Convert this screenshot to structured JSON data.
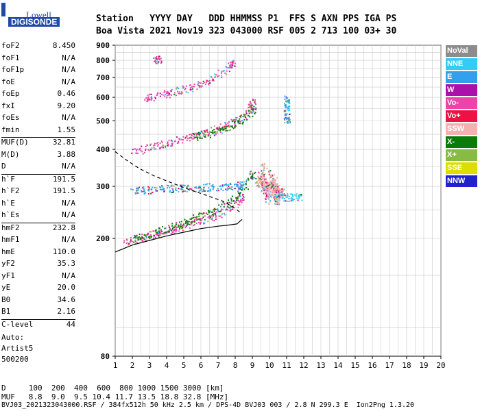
{
  "logo": {
    "line1": "Lowell",
    "line2": "DIGISONDE"
  },
  "header": {
    "line1": "Station   YYYY DAY   DDD HHMMSS P1  FFS S AXN PPS IGA PS",
    "line2": "Boa Vista 2021 Nov19 323 043000 RSF 005 2 713 100 03+ 30"
  },
  "params": {
    "group1": [
      {
        "n": "foF2",
        "v": "8.450"
      },
      {
        "n": "foF1",
        "v": "N/A"
      },
      {
        "n": "foF1p",
        "v": "N/A"
      },
      {
        "n": "foE",
        "v": "N/A"
      },
      {
        "n": "foEp",
        "v": "0.46"
      },
      {
        "n": "fxI",
        "v": "9.20"
      },
      {
        "n": "foEs",
        "v": "N/A"
      },
      {
        "n": "fmin",
        "v": "1.55"
      }
    ],
    "group2": [
      {
        "n": "MUF(D)",
        "v": "32.81"
      },
      {
        "n": "M(D)",
        "v": "3.88"
      },
      {
        "n": "D",
        "v": "N/A"
      }
    ],
    "group3": [
      {
        "n": "h`F",
        "v": "191.5"
      },
      {
        "n": "h`F2",
        "v": "191.5"
      },
      {
        "n": "h`E",
        "v": "N/A"
      },
      {
        "n": "h`Es",
        "v": "N/A"
      }
    ],
    "group4": [
      {
        "n": "hmF2",
        "v": "232.8"
      },
      {
        "n": "hmF1",
        "v": "N/A"
      },
      {
        "n": "hmE",
        "v": "110.0"
      },
      {
        "n": "yF2",
        "v": "35.3"
      },
      {
        "n": "yF1",
        "v": "N/A"
      },
      {
        "n": "yE",
        "v": "20.0"
      },
      {
        "n": "B0",
        "v": "34.6"
      },
      {
        "n": "B1",
        "v": "2.16"
      }
    ],
    "group5": [
      {
        "n": "C-level",
        "v": "44"
      }
    ]
  },
  "auto": {
    "l1": "Auto:",
    "l2": "Artist5",
    "l3": "500200"
  },
  "legend": [
    {
      "label": "NoVal",
      "color": "#8c8c8c"
    },
    {
      "label": "NNE",
      "color": "#33ccf5"
    },
    {
      "label": "E",
      "color": "#33a0ee"
    },
    {
      "label": "W",
      "color": "#aa11aa"
    },
    {
      "label": "Vo-",
      "color": "#ee44aa"
    },
    {
      "label": "Vo+",
      "color": "#ee1144"
    },
    {
      "label": "SSW",
      "color": "#f5b0b0"
    },
    {
      "label": "X-",
      "color": "#0a7a0a"
    },
    {
      "label": "X+",
      "color": "#88bb44"
    },
    {
      "label": "SSE",
      "color": "#dddd00"
    },
    {
      "label": "NNW",
      "color": "#2222cc"
    }
  ],
  "footer": {
    "l1": "D     100  200  400  600  800 1000 1500 3000 [km]",
    "l2": "MUF   8.8  9.0  9.5 10.4 11.7 13.5 18.8 32.8 [MHz]",
    "l3": "BVJ03_2021323043000.RSF / 384fx512h 50 kHz 2.5 km / DPS-4D BVJ03 003 / 2.8 N 299.3 E  Ion2Png 1.3.20"
  },
  "chart_data": {
    "type": "scatter",
    "xlim": [
      1,
      20
    ],
    "ylim": [
      80,
      900
    ],
    "xticks": [
      1,
      2,
      3,
      4,
      5,
      6,
      7,
      8,
      9,
      10,
      11,
      12,
      13,
      14,
      15,
      16,
      17,
      18,
      19,
      20
    ],
    "yticks": [
      80,
      200,
      300,
      400,
      500,
      600,
      700,
      800,
      900
    ],
    "grid": true,
    "legend_position": "right",
    "profile_solid": [
      [
        1.0,
        180
      ],
      [
        2.0,
        190
      ],
      [
        3.0,
        197
      ],
      [
        4.0,
        204
      ],
      [
        5.0,
        210
      ],
      [
        6.0,
        216
      ],
      [
        7.0,
        220
      ],
      [
        7.6,
        222
      ],
      [
        8.1,
        224
      ],
      [
        8.4,
        232
      ]
    ],
    "profile_dashed": [
      [
        1.0,
        393
      ],
      [
        1.6,
        370
      ],
      [
        2.4,
        345
      ],
      [
        3.3,
        325
      ],
      [
        4.3,
        308
      ],
      [
        5.3,
        293
      ],
      [
        6.3,
        280
      ],
      [
        7.3,
        267
      ],
      [
        7.9,
        255
      ],
      [
        8.3,
        245
      ]
    ],
    "traces": [
      {
        "name": "F2 O-trace 1st",
        "color": "#ee44aa",
        "points": [
          [
            1.5,
            195
          ],
          [
            2.0,
            198
          ],
          [
            2.5,
            202
          ],
          [
            3.0,
            205
          ],
          [
            3.5,
            209
          ],
          [
            4.0,
            213
          ],
          [
            4.5,
            217
          ],
          [
            5.0,
            222
          ],
          [
            5.5,
            226
          ],
          [
            6.0,
            230
          ],
          [
            6.5,
            236
          ],
          [
            7.0,
            242
          ],
          [
            7.5,
            250
          ],
          [
            8.0,
            262
          ],
          [
            8.3,
            278
          ]
        ]
      },
      {
        "name": "F2 X-trace 1st",
        "color": "#0a7a0a",
        "points": [
          [
            2.0,
            200
          ],
          [
            2.5,
            204
          ],
          [
            3.0,
            208
          ],
          [
            3.5,
            212
          ],
          [
            4.0,
            217
          ],
          [
            4.5,
            221
          ],
          [
            5.0,
            226
          ],
          [
            5.5,
            232
          ],
          [
            6.0,
            238
          ],
          [
            6.5,
            244
          ],
          [
            7.0,
            252
          ],
          [
            7.5,
            262
          ],
          [
            8.0,
            276
          ],
          [
            8.5,
            298
          ],
          [
            9.0,
            330
          ]
        ]
      },
      {
        "name": "NNE/E echoes",
        "color": "#33a0ee",
        "points": [
          [
            2.0,
            290
          ],
          [
            2.5,
            292
          ],
          [
            3.0,
            293
          ],
          [
            3.5,
            294
          ],
          [
            4.0,
            295
          ],
          [
            4.5,
            296
          ],
          [
            5.0,
            296
          ],
          [
            5.5,
            297
          ],
          [
            6.0,
            298
          ],
          [
            6.5,
            299
          ],
          [
            7.0,
            300
          ],
          [
            7.5,
            301
          ],
          [
            8.0,
            302
          ],
          [
            8.3,
            304
          ]
        ]
      },
      {
        "name": "SSW spread",
        "color": "#f5b0b0",
        "points": [
          [
            9.3,
            300
          ],
          [
            9.5,
            330
          ],
          [
            9.7,
            290
          ],
          [
            9.9,
            310
          ],
          [
            10.1,
            280
          ],
          [
            10.3,
            300
          ],
          [
            10.5,
            290
          ],
          [
            10.7,
            285
          ],
          [
            9.6,
            360
          ],
          [
            9.8,
            270
          ],
          [
            10.2,
            320
          ],
          [
            10.4,
            270
          ]
        ]
      },
      {
        "name": "2nd hop O",
        "color": "#ee44aa",
        "points": [
          [
            2.0,
            392
          ],
          [
            2.5,
            400
          ],
          [
            3.0,
            408
          ],
          [
            3.5,
            415
          ],
          [
            4.0,
            422
          ],
          [
            4.5,
            428
          ],
          [
            5.0,
            436
          ],
          [
            5.5,
            443
          ],
          [
            6.0,
            451
          ],
          [
            6.5,
            460
          ],
          [
            7.0,
            470
          ],
          [
            7.5,
            482
          ],
          [
            8.0,
            498
          ],
          [
            8.5,
            520
          ],
          [
            8.8,
            545
          ],
          [
            9.0,
            580
          ]
        ]
      },
      {
        "name": "2nd hop X",
        "color": "#0a7a0a",
        "points": [
          [
            5.5,
            440
          ],
          [
            6.0,
            447
          ],
          [
            6.5,
            455
          ],
          [
            7.0,
            464
          ],
          [
            7.5,
            476
          ],
          [
            8.0,
            492
          ],
          [
            8.5,
            512
          ],
          [
            9.0,
            545
          ]
        ]
      },
      {
        "name": "3rd hop",
        "color": "#ee44aa",
        "points": [
          [
            2.8,
            598
          ],
          [
            3.0,
            602
          ],
          [
            3.5,
            610
          ],
          [
            4.0,
            620
          ],
          [
            4.5,
            630
          ],
          [
            5.0,
            640
          ],
          [
            5.5,
            652
          ],
          [
            6.0,
            668
          ],
          [
            6.5,
            690
          ],
          [
            7.0,
            718
          ],
          [
            7.5,
            750
          ],
          [
            7.8,
            780
          ]
        ]
      },
      {
        "name": "4th hop",
        "color": "#ee44aa",
        "points": [
          [
            3.3,
            800
          ],
          [
            3.5,
            806
          ]
        ]
      },
      {
        "name": "11 MHz marker",
        "color": "#33a0ee",
        "points": [
          [
            11.0,
            600
          ],
          [
            11.0,
            585
          ],
          [
            11.0,
            560
          ],
          [
            11.0,
            530
          ],
          [
            11.0,
            505
          ]
        ]
      },
      {
        "name": "NNE tail",
        "color": "#33ccf5",
        "points": [
          [
            10.4,
            280
          ],
          [
            10.7,
            278
          ],
          [
            11.0,
            276
          ],
          [
            11.3,
            276
          ],
          [
            11.7,
            276
          ]
        ]
      }
    ]
  }
}
